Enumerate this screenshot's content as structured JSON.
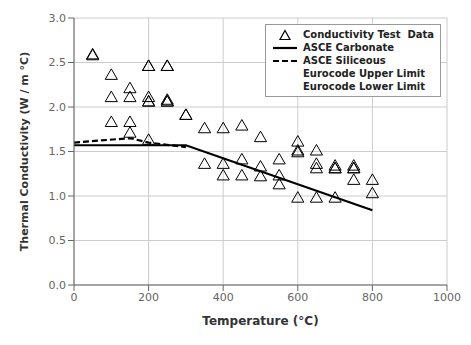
{
  "chart_data": {
    "type": "scatter",
    "xlabel": "Temperature (°C)",
    "ylabel": "Thermal Conductivity (W / m °C)",
    "xlim": [
      0,
      1000
    ],
    "ylim": [
      0.0,
      3.0
    ],
    "xticks": [
      0,
      200,
      400,
      600,
      800,
      1000
    ],
    "yticks": [
      {
        "value": 0.0,
        "label": "0.0"
      },
      0.5,
      {
        "value": 1.0,
        "label": "1.0"
      },
      1.5,
      {
        "value": 2.0,
        "label": "2.0"
      },
      2.5,
      {
        "value": 3.0,
        "label": "3.0"
      }
    ],
    "grid": true,
    "legend": "upper right",
    "series": [
      {
        "name": "Conductivity Test  Data",
        "type": "scatter",
        "color": "#000000",
        "marker": "triangle",
        "x": [
          50,
          50,
          100,
          100,
          100,
          150,
          150,
          150,
          150,
          200,
          200,
          200,
          200,
          200,
          200,
          250,
          250,
          250,
          250,
          250,
          300,
          300,
          350,
          350,
          400,
          400,
          400,
          450,
          450,
          450,
          500,
          500,
          500,
          550,
          550,
          550,
          600,
          600,
          600,
          600,
          650,
          650,
          650,
          650,
          700,
          700,
          700,
          700,
          750,
          750,
          750,
          750,
          800,
          800
        ],
        "values": [
          2.58,
          2.57,
          2.35,
          2.1,
          1.82,
          2.2,
          2.1,
          1.82,
          1.7,
          2.45,
          2.45,
          2.1,
          2.05,
          2.05,
          1.62,
          2.45,
          2.45,
          2.07,
          2.05,
          2.05,
          1.9,
          1.9,
          1.75,
          1.35,
          1.75,
          1.35,
          1.22,
          1.78,
          1.4,
          1.22,
          1.65,
          1.32,
          1.21,
          1.4,
          1.22,
          1.12,
          1.6,
          1.5,
          1.48,
          0.97,
          1.5,
          1.35,
          1.3,
          0.97,
          1.33,
          1.3,
          1.3,
          0.97,
          1.33,
          1.3,
          1.3,
          1.17,
          1.02,
          1.17
        ]
      },
      {
        "name": "ASCE Carbonate",
        "type": "line",
        "color": "#000000",
        "line_style": "solid",
        "x": [
          0,
          200,
          300,
          800
        ],
        "values": [
          1.57,
          1.57,
          1.57,
          0.84
        ]
      },
      {
        "name": "ASCE Siliceous",
        "type": "line",
        "color": "#000000",
        "line_style": "dashed",
        "x": [
          0,
          150,
          200,
          300
        ],
        "values": [
          1.6,
          1.65,
          1.6,
          1.55
        ]
      },
      {
        "name": "Eurocode Upper Limit",
        "type": "line",
        "x": [],
        "values": []
      },
      {
        "name": "Eurocode Lower Limit",
        "type": "line",
        "x": [],
        "values": []
      }
    ]
  }
}
